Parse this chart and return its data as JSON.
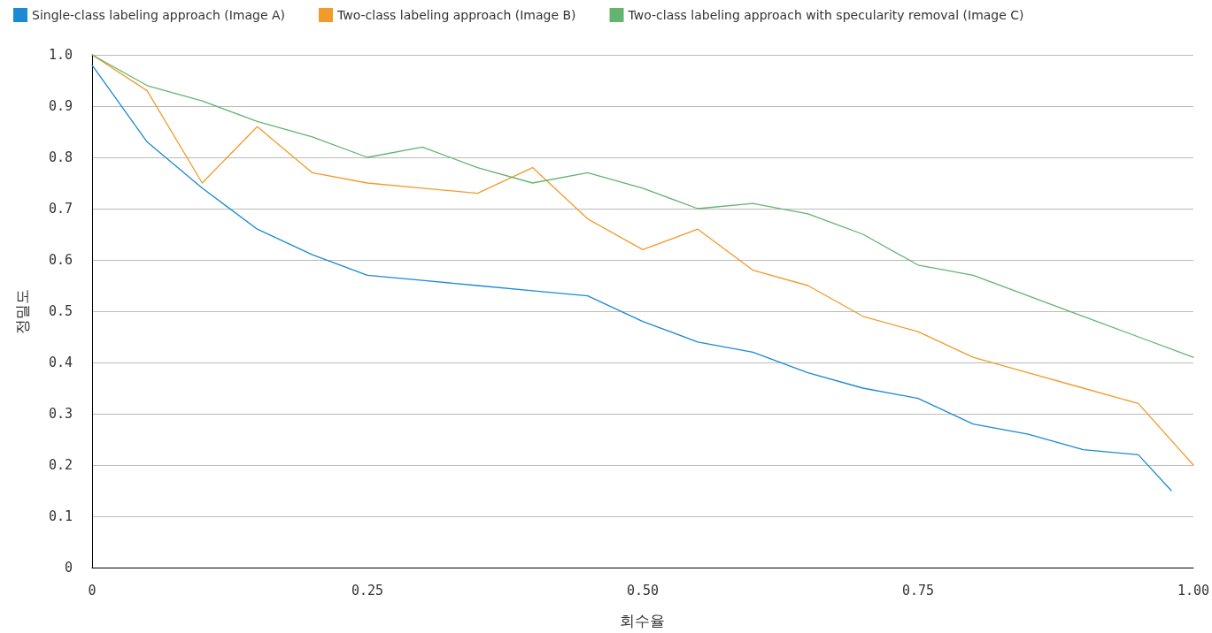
{
  "chart_data": {
    "type": "line",
    "xlabel": "회수율",
    "ylabel": "정밀도",
    "x": [
      0,
      0.05,
      0.1,
      0.15,
      0.2,
      0.25,
      0.3,
      0.35,
      0.4,
      0.45,
      0.5,
      0.55,
      0.6,
      0.65,
      0.7,
      0.75,
      0.8,
      0.85,
      0.9,
      0.95,
      1
    ],
    "series": [
      {
        "name": "Single-class labeling approach (Image A)",
        "color": "#1a8ad4",
        "x": [
          0,
          0.05,
          0.1,
          0.15,
          0.2,
          0.25,
          0.3,
          0.35,
          0.4,
          0.45,
          0.5,
          0.55,
          0.6,
          0.65,
          0.7,
          0.75,
          0.8,
          0.85,
          0.9,
          0.95,
          0.98
        ],
        "values": [
          0.98,
          0.83,
          0.74,
          0.66,
          0.61,
          0.57,
          0.56,
          0.55,
          0.54,
          0.53,
          0.48,
          0.44,
          0.42,
          0.38,
          0.35,
          0.33,
          0.28,
          0.26,
          0.23,
          0.22,
          0.15
        ]
      },
      {
        "name": "Two-class labeling approach (Image B)",
        "color": "#f39a2b",
        "values": [
          1.0,
          0.93,
          0.75,
          0.86,
          0.77,
          0.75,
          0.74,
          0.73,
          0.78,
          0.68,
          0.62,
          0.66,
          0.58,
          0.55,
          0.49,
          0.46,
          0.41,
          0.38,
          0.35,
          0.32,
          0.2
        ]
      },
      {
        "name": "Two-class labeling approach with specularity removal (Image C)",
        "color": "#63b46f",
        "values": [
          1.0,
          0.94,
          0.91,
          0.87,
          0.84,
          0.8,
          0.82,
          0.78,
          0.75,
          0.77,
          0.74,
          0.7,
          0.71,
          0.69,
          0.65,
          0.59,
          0.57,
          0.53,
          0.49,
          0.45,
          0.41
        ]
      }
    ],
    "xlim": [
      0,
      1
    ],
    "xticks": [
      0,
      {
        "value": 0.25,
        "label": "0.25"
      },
      {
        "value": 0.5,
        "label": "0.50"
      },
      0.75,
      {
        "value": 1,
        "label": "1.00"
      }
    ],
    "ylim": [
      0,
      1
    ],
    "yticks": [
      0,
      0.1,
      0.2,
      0.3,
      0.4,
      0.5,
      0.6,
      0.7,
      0.8,
      0.9,
      {
        "value": 1,
        "label": "1.0"
      }
    ],
    "grid": "y",
    "legend": "top left",
    "marker": "none",
    "line_style": "solid"
  }
}
